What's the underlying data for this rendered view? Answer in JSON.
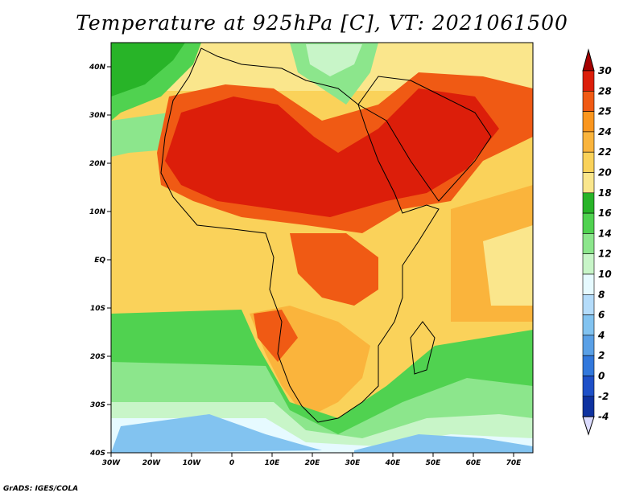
{
  "title": "Temperature at 925hPa [C], VT: 2021061500",
  "credit": "GrADS: IGES/COLA",
  "map": {
    "lon_ticks": [
      "30W",
      "20W",
      "10W",
      "0",
      "10E",
      "20E",
      "30E",
      "40E",
      "50E",
      "60E",
      "70E"
    ],
    "lat_ticks": [
      "40N",
      "30N",
      "20N",
      "10N",
      "EQ",
      "10S",
      "20S",
      "30S",
      "40S"
    ]
  },
  "colorbar": {
    "labels": [
      "30",
      "28",
      "25",
      "24",
      "22",
      "20",
      "18",
      "16",
      "14",
      "12",
      "10",
      "8",
      "6",
      "4",
      "2",
      "0",
      "-2",
      "-4"
    ],
    "colors": [
      "#a50000",
      "#dc1e0a",
      "#f05a14",
      "#fa961e",
      "#fab43c",
      "#fad25a",
      "#fae68c",
      "#28b428",
      "#50d250",
      "#8ce68c",
      "#c8f5c8",
      "#e6faff",
      "#b4dcfa",
      "#82c3f0",
      "#5aa0e6",
      "#3278dc",
      "#1e50c8",
      "#0f32a0",
      "#0a1e6e"
    ]
  }
}
